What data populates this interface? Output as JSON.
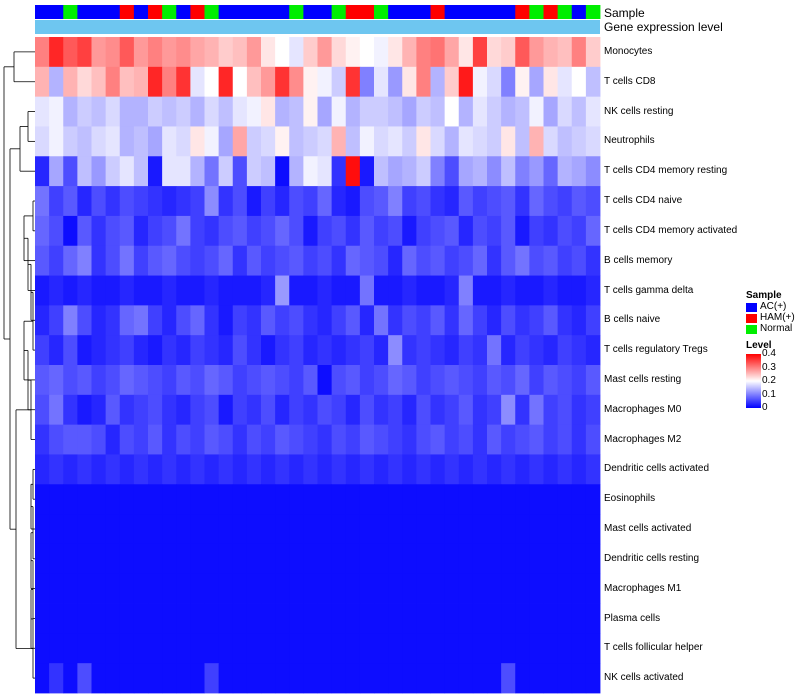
{
  "chart_data": {
    "type": "heatmap",
    "title": "",
    "annotation_tracks": [
      "Sample",
      "Gene expression level"
    ],
    "rows": [
      "Monocytes",
      "T cells CD8",
      "NK cells resting",
      "Neutrophils",
      "T cells CD4 memory resting",
      "T cells CD4 naive",
      "T cells CD4 memory activated",
      "B cells memory",
      "T cells gamma delta",
      "B cells naive",
      "T cells regulatory  Tregs",
      "Mast cells resting",
      "Macrophages M0",
      "Macrophages M2",
      "Dendritic cells activated",
      "Eosinophils",
      "Mast cells activated",
      "Dendritic cells resting",
      "Macrophages M1",
      "Plasma cells",
      "T cells follicular helper",
      "NK cells activated"
    ],
    "sample_groups": [
      "AC",
      "AC",
      "N",
      "AC",
      "AC",
      "AC",
      "HAM",
      "AC",
      "HAM",
      "N",
      "AC",
      "HAM",
      "N",
      "AC",
      "AC",
      "AC",
      "AC",
      "AC",
      "N",
      "AC",
      "AC",
      "N",
      "HAM",
      "HAM",
      "N",
      "AC",
      "AC",
      "AC",
      "HAM",
      "AC",
      "AC",
      "AC",
      "AC",
      "AC",
      "HAM",
      "N",
      "HAM",
      "N",
      "AC",
      "N"
    ],
    "matrix": [
      [
        0.3,
        0.37,
        0.33,
        0.35,
        0.28,
        0.29,
        0.33,
        0.28,
        0.3,
        0.28,
        0.29,
        0.27,
        0.26,
        0.24,
        0.25,
        0.28,
        0.22,
        0.2,
        0.18,
        0.24,
        0.28,
        0.23,
        0.21,
        0.2,
        0.19,
        0.22,
        0.26,
        0.3,
        0.31,
        0.27,
        0.22,
        0.35,
        0.23,
        0.24,
        0.33,
        0.28,
        0.26,
        0.25,
        0.3,
        0.24
      ],
      [
        0.26,
        0.14,
        0.26,
        0.23,
        0.25,
        0.3,
        0.25,
        0.26,
        0.37,
        0.3,
        0.36,
        0.18,
        0.2,
        0.37,
        0.2,
        0.25,
        0.28,
        0.36,
        0.29,
        0.21,
        0.19,
        0.16,
        0.36,
        0.1,
        0.18,
        0.12,
        0.22,
        0.3,
        0.14,
        0.24,
        0.38,
        0.19,
        0.17,
        0.1,
        0.21,
        0.13,
        0.22,
        0.18,
        0.2,
        0.15
      ],
      [
        0.18,
        0.19,
        0.14,
        0.16,
        0.15,
        0.17,
        0.14,
        0.14,
        0.16,
        0.15,
        0.16,
        0.14,
        0.17,
        0.15,
        0.18,
        0.19,
        0.22,
        0.14,
        0.15,
        0.21,
        0.13,
        0.19,
        0.14,
        0.16,
        0.16,
        0.15,
        0.13,
        0.16,
        0.15,
        0.2,
        0.14,
        0.18,
        0.16,
        0.14,
        0.15,
        0.19,
        0.13,
        0.17,
        0.15,
        0.18
      ],
      [
        0.17,
        0.19,
        0.16,
        0.15,
        0.17,
        0.18,
        0.14,
        0.15,
        0.13,
        0.18,
        0.17,
        0.22,
        0.19,
        0.13,
        0.27,
        0.16,
        0.17,
        0.21,
        0.15,
        0.16,
        0.17,
        0.26,
        0.15,
        0.19,
        0.17,
        0.18,
        0.16,
        0.22,
        0.17,
        0.14,
        0.18,
        0.17,
        0.16,
        0.22,
        0.15,
        0.26,
        0.17,
        0.15,
        0.16,
        0.17
      ],
      [
        0.03,
        0.13,
        0.06,
        0.15,
        0.12,
        0.16,
        0.18,
        0.15,
        0.02,
        0.18,
        0.18,
        0.14,
        0.09,
        0.16,
        0.06,
        0.16,
        0.15,
        0.01,
        0.14,
        0.19,
        0.18,
        0.04,
        0.39,
        0.02,
        0.15,
        0.13,
        0.14,
        0.16,
        0.1,
        0.06,
        0.13,
        0.14,
        0.11,
        0.15,
        0.1,
        0.12,
        0.08,
        0.14,
        0.13,
        0.11
      ],
      [
        0.09,
        0.05,
        0.07,
        0.03,
        0.06,
        0.04,
        0.06,
        0.05,
        0.04,
        0.03,
        0.04,
        0.05,
        0.11,
        0.04,
        0.06,
        0.02,
        0.05,
        0.03,
        0.06,
        0.05,
        0.08,
        0.03,
        0.02,
        0.06,
        0.07,
        0.1,
        0.05,
        0.06,
        0.04,
        0.03,
        0.07,
        0.05,
        0.06,
        0.07,
        0.04,
        0.08,
        0.06,
        0.05,
        0.07,
        0.06
      ],
      [
        0.08,
        0.06,
        0.01,
        0.07,
        0.04,
        0.06,
        0.07,
        0.03,
        0.05,
        0.06,
        0.09,
        0.05,
        0.04,
        0.06,
        0.07,
        0.05,
        0.06,
        0.08,
        0.06,
        0.02,
        0.05,
        0.06,
        0.04,
        0.07,
        0.05,
        0.06,
        0.02,
        0.05,
        0.06,
        0.07,
        0.03,
        0.06,
        0.05,
        0.07,
        0.02,
        0.05,
        0.04,
        0.06,
        0.05,
        0.08
      ],
      [
        0.07,
        0.05,
        0.08,
        0.1,
        0.04,
        0.06,
        0.09,
        0.05,
        0.07,
        0.08,
        0.06,
        0.05,
        0.06,
        0.08,
        0.04,
        0.07,
        0.05,
        0.06,
        0.07,
        0.05,
        0.06,
        0.04,
        0.08,
        0.07,
        0.06,
        0.03,
        0.08,
        0.06,
        0.07,
        0.05,
        0.06,
        0.08,
        0.04,
        0.07,
        0.09,
        0.06,
        0.07,
        0.05,
        0.06,
        0.04
      ],
      [
        0.02,
        0.03,
        0.02,
        0.03,
        0.02,
        0.02,
        0.03,
        0.02,
        0.02,
        0.03,
        0.02,
        0.02,
        0.03,
        0.02,
        0.02,
        0.02,
        0.03,
        0.12,
        0.02,
        0.02,
        0.03,
        0.02,
        0.02,
        0.09,
        0.02,
        0.02,
        0.03,
        0.02,
        0.02,
        0.03,
        0.1,
        0.02,
        0.02,
        0.03,
        0.02,
        0.02,
        0.03,
        0.02,
        0.02,
        0.03
      ],
      [
        0.03,
        0.05,
        0.1,
        0.06,
        0.03,
        0.04,
        0.08,
        0.09,
        0.05,
        0.03,
        0.06,
        0.08,
        0.04,
        0.02,
        0.05,
        0.04,
        0.07,
        0.05,
        0.06,
        0.04,
        0.03,
        0.05,
        0.07,
        0.03,
        0.09,
        0.04,
        0.06,
        0.05,
        0.07,
        0.04,
        0.08,
        0.05,
        0.03,
        0.06,
        0.04,
        0.05,
        0.07,
        0.04,
        0.03,
        0.05
      ],
      [
        0.05,
        0.03,
        0.06,
        0.02,
        0.03,
        0.04,
        0.05,
        0.03,
        0.02,
        0.04,
        0.03,
        0.05,
        0.04,
        0.03,
        0.06,
        0.04,
        0.02,
        0.04,
        0.05,
        0.03,
        0.04,
        0.03,
        0.04,
        0.05,
        0.03,
        0.11,
        0.04,
        0.05,
        0.04,
        0.03,
        0.05,
        0.04,
        0.09,
        0.03,
        0.05,
        0.04,
        0.03,
        0.05,
        0.04,
        0.03
      ],
      [
        0.07,
        0.08,
        0.06,
        0.07,
        0.05,
        0.06,
        0.08,
        0.07,
        0.06,
        0.05,
        0.07,
        0.06,
        0.08,
        0.07,
        0.05,
        0.06,
        0.07,
        0.06,
        0.05,
        0.07,
        0.01,
        0.06,
        0.07,
        0.05,
        0.06,
        0.08,
        0.07,
        0.05,
        0.06,
        0.07,
        0.06,
        0.05,
        0.07,
        0.06,
        0.08,
        0.05,
        0.07,
        0.06,
        0.05,
        0.07
      ],
      [
        0.06,
        0.09,
        0.04,
        0.02,
        0.03,
        0.07,
        0.04,
        0.05,
        0.06,
        0.04,
        0.03,
        0.05,
        0.06,
        0.02,
        0.05,
        0.04,
        0.06,
        0.03,
        0.05,
        0.04,
        0.06,
        0.05,
        0.03,
        0.06,
        0.04,
        0.05,
        0.03,
        0.06,
        0.04,
        0.05,
        0.07,
        0.04,
        0.05,
        0.11,
        0.04,
        0.09,
        0.05,
        0.06,
        0.04,
        0.05
      ],
      [
        0.04,
        0.06,
        0.07,
        0.07,
        0.06,
        0.03,
        0.06,
        0.05,
        0.07,
        0.04,
        0.06,
        0.05,
        0.07,
        0.06,
        0.04,
        0.06,
        0.05,
        0.07,
        0.06,
        0.05,
        0.04,
        0.06,
        0.05,
        0.07,
        0.06,
        0.05,
        0.04,
        0.06,
        0.07,
        0.05,
        0.06,
        0.04,
        0.07,
        0.05,
        0.06,
        0.07,
        0.05,
        0.06,
        0.04,
        0.06
      ],
      [
        0.03,
        0.04,
        0.03,
        0.04,
        0.03,
        0.04,
        0.03,
        0.04,
        0.03,
        0.04,
        0.03,
        0.04,
        0.03,
        0.04,
        0.03,
        0.04,
        0.03,
        0.04,
        0.03,
        0.04,
        0.03,
        0.04,
        0.03,
        0.04,
        0.03,
        0.04,
        0.03,
        0.04,
        0.03,
        0.04,
        0.03,
        0.04,
        0.03,
        0.04,
        0.03,
        0.04,
        0.03,
        0.04,
        0.03,
        0.04
      ],
      [
        0.01,
        0.01,
        0.01,
        0.01,
        0.01,
        0.01,
        0.01,
        0.01,
        0.01,
        0.01,
        0.01,
        0.01,
        0.01,
        0.01,
        0.01,
        0.01,
        0.01,
        0.01,
        0.01,
        0.01,
        0.01,
        0.01,
        0.01,
        0.01,
        0.01,
        0.01,
        0.01,
        0.01,
        0.01,
        0.01,
        0.01,
        0.01,
        0.01,
        0.01,
        0.01,
        0.01,
        0.01,
        0.01,
        0.01,
        0.01
      ],
      [
        0.01,
        0.01,
        0.01,
        0.01,
        0.01,
        0.01,
        0.01,
        0.01,
        0.01,
        0.01,
        0.01,
        0.01,
        0.01,
        0.01,
        0.01,
        0.01,
        0.01,
        0.01,
        0.01,
        0.01,
        0.01,
        0.01,
        0.01,
        0.01,
        0.01,
        0.01,
        0.01,
        0.01,
        0.01,
        0.01,
        0.01,
        0.01,
        0.01,
        0.01,
        0.01,
        0.01,
        0.01,
        0.01,
        0.01,
        0.01
      ],
      [
        0.01,
        0.01,
        0.01,
        0.01,
        0.01,
        0.01,
        0.01,
        0.01,
        0.01,
        0.01,
        0.01,
        0.01,
        0.01,
        0.01,
        0.01,
        0.01,
        0.01,
        0.01,
        0.01,
        0.01,
        0.01,
        0.01,
        0.01,
        0.01,
        0.01,
        0.01,
        0.01,
        0.01,
        0.01,
        0.01,
        0.01,
        0.01,
        0.01,
        0.01,
        0.01,
        0.01,
        0.01,
        0.01,
        0.01,
        0.01
      ],
      [
        0.01,
        0.01,
        0.01,
        0.01,
        0.01,
        0.01,
        0.01,
        0.01,
        0.01,
        0.01,
        0.01,
        0.01,
        0.01,
        0.01,
        0.01,
        0.01,
        0.01,
        0.01,
        0.01,
        0.01,
        0.01,
        0.01,
        0.01,
        0.01,
        0.01,
        0.01,
        0.01,
        0.01,
        0.01,
        0.01,
        0.01,
        0.01,
        0.01,
        0.01,
        0.01,
        0.01,
        0.01,
        0.01,
        0.01,
        0.01
      ],
      [
        0.01,
        0.01,
        0.01,
        0.01,
        0.01,
        0.01,
        0.01,
        0.01,
        0.01,
        0.01,
        0.01,
        0.01,
        0.01,
        0.01,
        0.01,
        0.01,
        0.01,
        0.01,
        0.01,
        0.01,
        0.01,
        0.01,
        0.01,
        0.01,
        0.01,
        0.01,
        0.01,
        0.01,
        0.01,
        0.01,
        0.01,
        0.01,
        0.01,
        0.01,
        0.01,
        0.01,
        0.01,
        0.01,
        0.01,
        0.01
      ],
      [
        0.01,
        0.01,
        0.01,
        0.01,
        0.01,
        0.01,
        0.01,
        0.01,
        0.01,
        0.01,
        0.01,
        0.01,
        0.01,
        0.01,
        0.01,
        0.01,
        0.01,
        0.01,
        0.01,
        0.01,
        0.01,
        0.01,
        0.01,
        0.01,
        0.01,
        0.01,
        0.01,
        0.01,
        0.01,
        0.01,
        0.01,
        0.01,
        0.01,
        0.01,
        0.01,
        0.01,
        0.01,
        0.01,
        0.01,
        0.01
      ],
      [
        0.01,
        0.04,
        0.01,
        0.06,
        0.01,
        0.01,
        0.01,
        0.01,
        0.01,
        0.01,
        0.01,
        0.01,
        0.05,
        0.01,
        0.01,
        0.01,
        0.01,
        0.01,
        0.01,
        0.01,
        0.01,
        0.01,
        0.01,
        0.01,
        0.01,
        0.01,
        0.01,
        0.01,
        0.01,
        0.01,
        0.01,
        0.01,
        0.01,
        0.06,
        0.01,
        0.01,
        0.01,
        0.01,
        0.01,
        0.01
      ]
    ],
    "color_scale": {
      "min": 0,
      "mid": 0.2,
      "max": 0.4,
      "low_color": "#0000ff",
      "mid_color": "#ffffff",
      "high_color": "#ff0000"
    },
    "gene_expression_color": "#6ec6f0"
  },
  "legend": {
    "sample_title": "Sample",
    "sample_items": [
      {
        "key": "AC",
        "label": "AC(+)",
        "color": "#0000ff"
      },
      {
        "key": "HAM",
        "label": "HAM(+)",
        "color": "#ff0000"
      },
      {
        "key": "N",
        "label": "Normal",
        "color": "#00ee00"
      }
    ],
    "level_title": "Level",
    "level_ticks": [
      "0.4",
      "0.3",
      "0.2",
      "0.1",
      "0"
    ]
  }
}
